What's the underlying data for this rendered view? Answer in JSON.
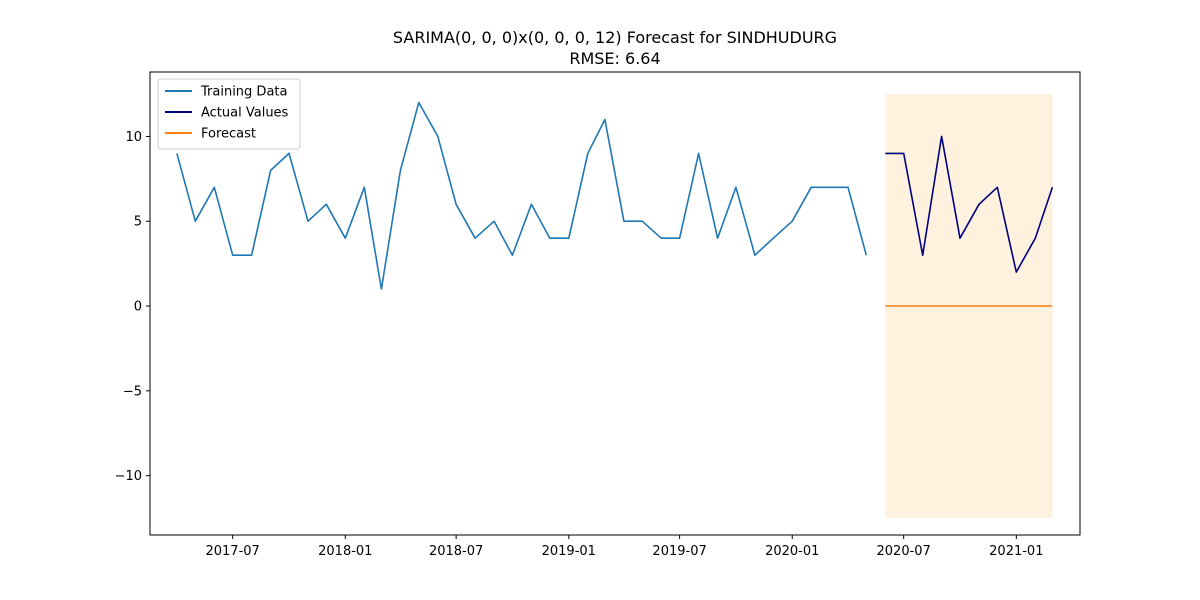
{
  "chart_data": {
    "type": "line",
    "title": "SARIMA(0, 0, 0)x(0, 0, 0, 12) Forecast for SINDHUDURG",
    "subtitle": "RMSE: 6.64",
    "xlabel": "",
    "ylabel": "",
    "x_axis_type": "date",
    "xlim": [
      "2017-02-16",
      "2021-04-15"
    ],
    "ylim": [
      -13.5,
      13.8
    ],
    "x_ticks": [
      "2017-07-01",
      "2018-01-01",
      "2018-07-01",
      "2019-01-01",
      "2019-07-01",
      "2020-01-01",
      "2020-07-01",
      "2021-01-01"
    ],
    "x_tick_labels": [
      "2017-07",
      "2018-01",
      "2018-07",
      "2019-01",
      "2019-07",
      "2020-01",
      "2020-07",
      "2021-01"
    ],
    "y_ticks": [
      10,
      5,
      0,
      -5,
      -10
    ],
    "y_tick_labels": [
      "10",
      "5",
      "0",
      "−5",
      "−10"
    ],
    "grid": false,
    "legend_position": "top-left",
    "series": [
      {
        "name": "Training Data",
        "color": "#1f77b4",
        "x": [
          "2017-04-01",
          "2017-05-01",
          "2017-06-01",
          "2017-07-01",
          "2017-08-01",
          "2017-09-01",
          "2017-10-01",
          "2017-11-01",
          "2017-12-01",
          "2018-01-01",
          "2018-02-01",
          "2018-03-01",
          "2018-04-01",
          "2018-05-01",
          "2018-06-01",
          "2018-07-01",
          "2018-08-01",
          "2018-09-01",
          "2018-10-01",
          "2018-11-01",
          "2018-12-01",
          "2019-01-01",
          "2019-02-01",
          "2019-03-01",
          "2019-04-01",
          "2019-05-01",
          "2019-06-01",
          "2019-07-01",
          "2019-08-01",
          "2019-09-01",
          "2019-10-01",
          "2019-11-01",
          "2019-12-01",
          "2020-01-01",
          "2020-02-01",
          "2020-03-01",
          "2020-04-01",
          "2020-05-01"
        ],
        "values": [
          9,
          5,
          7,
          3,
          3,
          8,
          9,
          5,
          6,
          4,
          7,
          1,
          8,
          12,
          10,
          6,
          4,
          5,
          3,
          6,
          4,
          4,
          9,
          11,
          5,
          5,
          4,
          4,
          9,
          4,
          7,
          3,
          4,
          5,
          7,
          7,
          7,
          3
        ]
      },
      {
        "name": "Actual Values",
        "color": "#000080",
        "x": [
          "2020-06-01",
          "2020-07-01",
          "2020-08-01",
          "2020-09-01",
          "2020-10-01",
          "2020-11-01",
          "2020-12-01",
          "2021-01-01",
          "2021-02-01",
          "2021-03-01"
        ],
        "values": [
          9,
          9,
          3,
          10,
          4,
          6,
          7,
          2,
          4,
          7
        ]
      },
      {
        "name": "Forecast",
        "color": "#ff7f0e",
        "x": [
          "2020-06-01",
          "2020-07-01",
          "2020-08-01",
          "2020-09-01",
          "2020-10-01",
          "2020-11-01",
          "2020-12-01",
          "2021-01-01",
          "2021-02-01",
          "2021-03-01"
        ],
        "values": [
          0,
          0,
          0,
          0,
          0,
          0,
          0,
          0,
          0,
          0
        ]
      }
    ],
    "confidence_band": {
      "color": "#fdebd0",
      "x": [
        "2020-06-01",
        "2021-03-01"
      ],
      "lower": -12.5,
      "upper": 12.5
    }
  }
}
